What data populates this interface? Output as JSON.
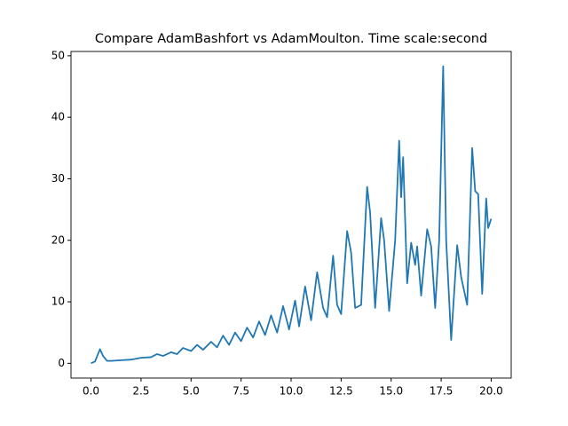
{
  "chart_data": {
    "type": "line",
    "title": "Compare AdamBashfort vs AdamMoulton. Time scale:second",
    "x": [
      0,
      0.2,
      0.35,
      0.45,
      0.6,
      0.8,
      1.0,
      1.5,
      2.0,
      2.5,
      3.0,
      3.3,
      3.6,
      4.0,
      4.3,
      4.6,
      5.0,
      5.3,
      5.6,
      6.0,
      6.3,
      6.6,
      6.9,
      7.2,
      7.5,
      7.8,
      8.1,
      8.4,
      8.7,
      9.0,
      9.3,
      9.6,
      9.9,
      10.2,
      10.4,
      10.7,
      11.0,
      11.3,
      11.6,
      11.8,
      12.1,
      12.3,
      12.5,
      12.8,
      13.0,
      13.2,
      13.5,
      13.8,
      13.95,
      14.2,
      14.5,
      14.65,
      14.9,
      15.2,
      15.4,
      15.5,
      15.6,
      15.8,
      16.0,
      16.2,
      16.3,
      16.5,
      16.8,
      17.0,
      17.2,
      17.4,
      17.6,
      17.75,
      18.0,
      18.3,
      18.5,
      18.8,
      19.05,
      19.2,
      19.35,
      19.55,
      19.75,
      19.85,
      20.0
    ],
    "values": [
      0,
      0.3,
      1.5,
      2.3,
      1.2,
      0.4,
      0.4,
      0.5,
      0.6,
      0.9,
      1.0,
      1.5,
      1.2,
      1.8,
      1.5,
      2.5,
      2.0,
      3.0,
      2.2,
      3.5,
      2.6,
      4.5,
      3.0,
      5.0,
      3.6,
      5.8,
      4.2,
      6.8,
      4.6,
      7.8,
      5.0,
      9.3,
      5.5,
      10.2,
      6.0,
      12.5,
      7.0,
      14.8,
      9.0,
      7.5,
      17.5,
      9.5,
      8.0,
      21.5,
      18.0,
      9.0,
      9.5,
      28.7,
      24.5,
      9.0,
      23.6,
      20.0,
      8.5,
      20.0,
      36.2,
      27.0,
      33.5,
      13.0,
      19.6,
      16.0,
      19.0,
      11.0,
      21.8,
      19.0,
      9.0,
      20.0,
      48.3,
      20.0,
      3.8,
      19.2,
      14.0,
      9.5,
      35.0,
      28.0,
      27.5,
      11.3,
      26.8,
      22.0,
      23.5
    ],
    "color": "#1f77b4",
    "xlim": [
      -1,
      21
    ],
    "ylim": [
      -2.4,
      50.7
    ],
    "xticks": [
      {
        "value": 0,
        "label": "0.0"
      },
      2.5,
      {
        "value": 5,
        "label": "5.0"
      },
      7.5,
      {
        "value": 10,
        "label": "10.0"
      },
      12.5,
      {
        "value": 15,
        "label": "15.0"
      },
      17.5,
      {
        "value": 20,
        "label": "20.0"
      }
    ],
    "yticks": [
      0,
      10,
      20,
      30,
      40,
      50
    ]
  }
}
